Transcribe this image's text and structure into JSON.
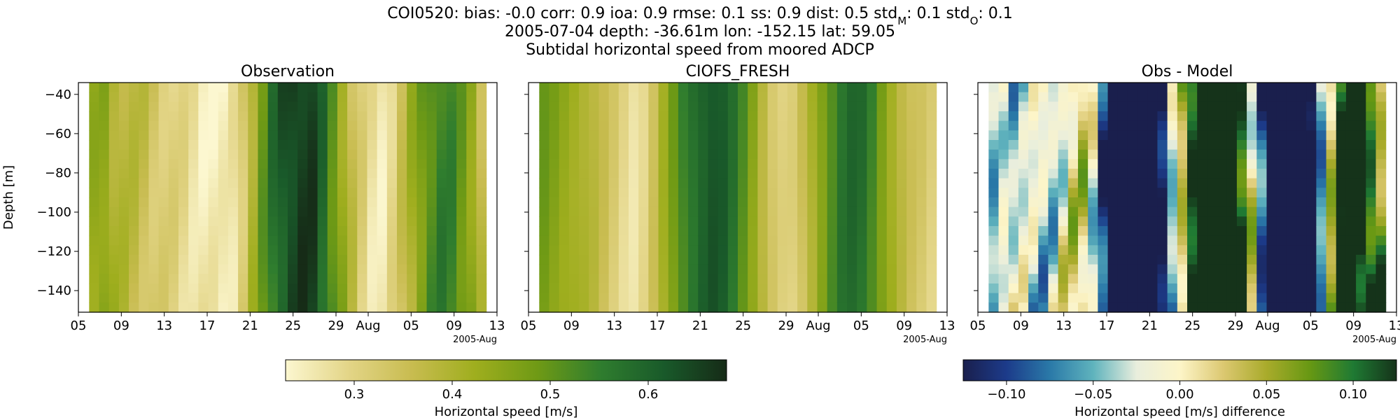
{
  "figure": {
    "title_parts": [
      "COI0520: bias: -0.0  corr: 0.9  ioa: 0.9  rmse: 0.1  ss: 0.9  dist: 0.5  std",
      "M",
      ": 0.1  std",
      "O",
      ": 0.1"
    ],
    "subtitle_line1": "2005-07-04 depth: -36.61m lon: -152.15 lat: 59.05",
    "subtitle_line2": "Subtidal horizontal speed from moored ADCP"
  },
  "colors": {
    "speed_cmap": [
      "#fcf7d0",
      "#e3d587",
      "#c8bc50",
      "#9fae1e",
      "#6f9a15",
      "#2f7d2e",
      "#195a2a",
      "#162b17"
    ],
    "diff_cmap": [
      "#1a1f4d",
      "#1c3b8a",
      "#2a79a8",
      "#5fb3bd",
      "#e9eedd",
      "#fdf5c8",
      "#dcc871",
      "#a9ab2b",
      "#679813",
      "#1f7a33",
      "#15331a"
    ]
  },
  "chart_data": [
    {
      "type": "heatmap",
      "title": "Observation",
      "ylabel": "Depth [m]",
      "xlabel": "",
      "x_range": [
        "2005-07-05",
        "2005-08-13"
      ],
      "data_x_range": [
        "2005-07-06",
        "2005-08-12"
      ],
      "ylim": [
        -151,
        -34
      ],
      "y_ticks": [
        -40,
        -60,
        -80,
        -100,
        -120,
        -140
      ],
      "x_tick_labels": [
        "05",
        "09",
        "13",
        "17",
        "21",
        "25",
        "29",
        "Aug",
        "05",
        "09",
        "13"
      ],
      "x_offset_label": "2005-Aug",
      "value_range": [
        0.23,
        0.68
      ],
      "time_profile": [
        0.42,
        0.46,
        0.4,
        0.38,
        0.36,
        0.33,
        0.31,
        0.29,
        0.27,
        0.25,
        0.24,
        0.27,
        0.36,
        0.48,
        0.58,
        0.64,
        0.66,
        0.65,
        0.55,
        0.45,
        0.35,
        0.28,
        0.25,
        0.3,
        0.38,
        0.47,
        0.53,
        0.56,
        0.5,
        0.44,
        0.33
      ]
    },
    {
      "type": "heatmap",
      "title": "CIOFS_FRESH",
      "x_range": [
        "2005-07-05",
        "2005-08-13"
      ],
      "data_x_range": [
        "2005-07-06",
        "2005-08-12"
      ],
      "ylim": [
        -151,
        -34
      ],
      "x_tick_labels": [
        "05",
        "09",
        "13",
        "17",
        "21",
        "25",
        "29",
        "Aug",
        "05",
        "09",
        "13"
      ],
      "x_offset_label": "2005-Aug",
      "value_range": [
        0.23,
        0.68
      ],
      "time_profile": [
        0.5,
        0.47,
        0.44,
        0.42,
        0.39,
        0.35,
        0.31,
        0.27,
        0.3,
        0.38,
        0.47,
        0.55,
        0.6,
        0.63,
        0.61,
        0.55,
        0.47,
        0.38,
        0.31,
        0.3,
        0.36,
        0.44,
        0.52,
        0.58,
        0.6,
        0.55,
        0.47,
        0.4,
        0.35,
        0.33,
        0.3
      ]
    },
    {
      "type": "heatmap",
      "title": "Obs - Model",
      "x_range": [
        "2005-07-05",
        "2005-08-13"
      ],
      "data_x_range": [
        "2005-07-06",
        "2005-08-12"
      ],
      "ylim": [
        -151,
        -34
      ],
      "x_tick_labels": [
        "05",
        "09",
        "13",
        "17",
        "21",
        "25",
        "29",
        "Aug",
        "05",
        "09",
        "13"
      ],
      "x_offset_label": "2005-Aug",
      "value_range": [
        -0.125,
        0.125
      ]
    }
  ],
  "colorbars": [
    {
      "label": "Horizontal speed [m/s]",
      "range": [
        0.23,
        0.68
      ],
      "ticks": [
        0.3,
        0.4,
        0.5,
        0.6
      ],
      "tick_labels": [
        "0.3",
        "0.4",
        "0.5",
        "0.6"
      ]
    },
    {
      "label": "Horizontal speed [m/s] difference",
      "range": [
        -0.125,
        0.125
      ],
      "ticks": [
        -0.1,
        -0.05,
        0.0,
        0.05,
        0.1
      ],
      "tick_labels": [
        "−0.10",
        "−0.05",
        "0.00",
        "0.05",
        "0.10"
      ]
    }
  ]
}
